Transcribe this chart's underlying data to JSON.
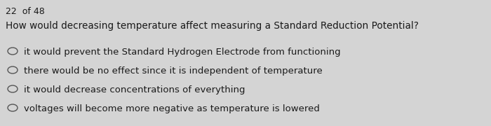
{
  "counter_text": "22  of 48",
  "question": "How would decreasing temperature affect measuring a Standard Reduction Potential?",
  "options": [
    "it would prevent the Standard Hydrogen Electrode from functioning",
    "there would be no effect since it is independent of temperature",
    "it would decrease concentrations of everything",
    "voltages will become more negative as temperature is lowered"
  ],
  "bg_color": "#d4d4d4",
  "text_color": "#1a1a1a",
  "counter_fontsize": 9.0,
  "question_fontsize": 9.8,
  "option_fontsize": 9.5,
  "circle_color": "#555555",
  "circle_linewidth": 1.0
}
